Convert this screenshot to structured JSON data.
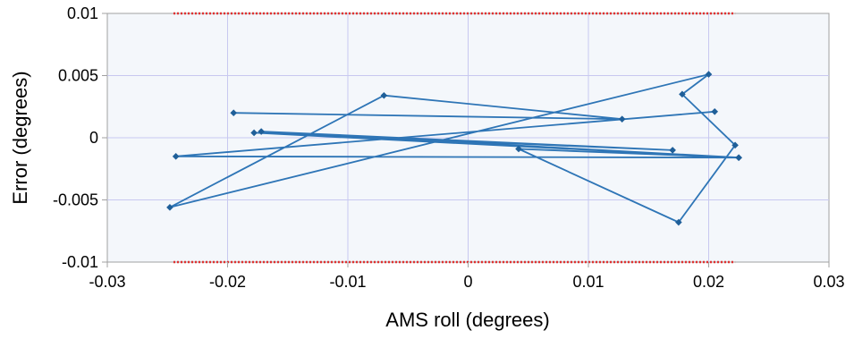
{
  "chart_data": {
    "type": "line",
    "title": "",
    "xlabel": "AMS roll (degrees)",
    "ylabel": "Error (degrees)",
    "xlim": [
      -0.03,
      0.03
    ],
    "ylim": [
      -0.01,
      0.01
    ],
    "x_ticks": [
      -0.03,
      -0.02,
      -0.01,
      0,
      0.01,
      0.02,
      0.03
    ],
    "x_tick_labels": [
      "-0.03",
      "-0.02",
      "-0.01",
      "0",
      "0.01",
      "0.02",
      "0.03"
    ],
    "y_ticks": [
      0.01,
      0.005,
      0,
      -0.005,
      -0.01
    ],
    "y_tick_labels": [
      "0.01",
      "0.005",
      "0",
      "-0.005",
      "-0.01"
    ],
    "grid": true,
    "legend": "none",
    "colors": {
      "series": "#2e75b6",
      "marker": "#1f5f99",
      "limit": "#e03030",
      "grid": "#c8c8f0",
      "plot_bg": "#f4f7fb",
      "frame": "#a0a0a0"
    },
    "limit_lines": [
      {
        "y": 0.01,
        "x_range": [
          -0.0245,
          0.0222
        ]
      },
      {
        "y": -0.01,
        "x_range": [
          -0.0245,
          0.0222
        ]
      }
    ],
    "series": [
      {
        "name": "",
        "marker": "diamond",
        "points": [
          {
            "x": -0.0195,
            "y": 0.002
          },
          {
            "x": 0.0128,
            "y": 0.0015
          },
          {
            "x": -0.007,
            "y": 0.0034
          },
          {
            "x": -0.0248,
            "y": -0.0056
          },
          {
            "x": 0.02,
            "y": 0.0051
          },
          {
            "x": 0.0178,
            "y": 0.0035
          },
          {
            "x": 0.0222,
            "y": -0.0006
          },
          {
            "x": 0.0175,
            "y": -0.0068
          },
          {
            "x": 0.0042,
            "y": -0.0009
          },
          {
            "x": 0.0225,
            "y": -0.0016
          },
          {
            "x": -0.0178,
            "y": 0.0004
          },
          {
            "x": 0.017,
            "y": -0.001
          },
          {
            "x": -0.0172,
            "y": 0.0005
          },
          {
            "x": 0.0225,
            "y": -0.0016
          },
          {
            "x": -0.0243,
            "y": -0.0015
          },
          {
            "x": 0.0205,
            "y": 0.0021
          }
        ]
      }
    ]
  }
}
